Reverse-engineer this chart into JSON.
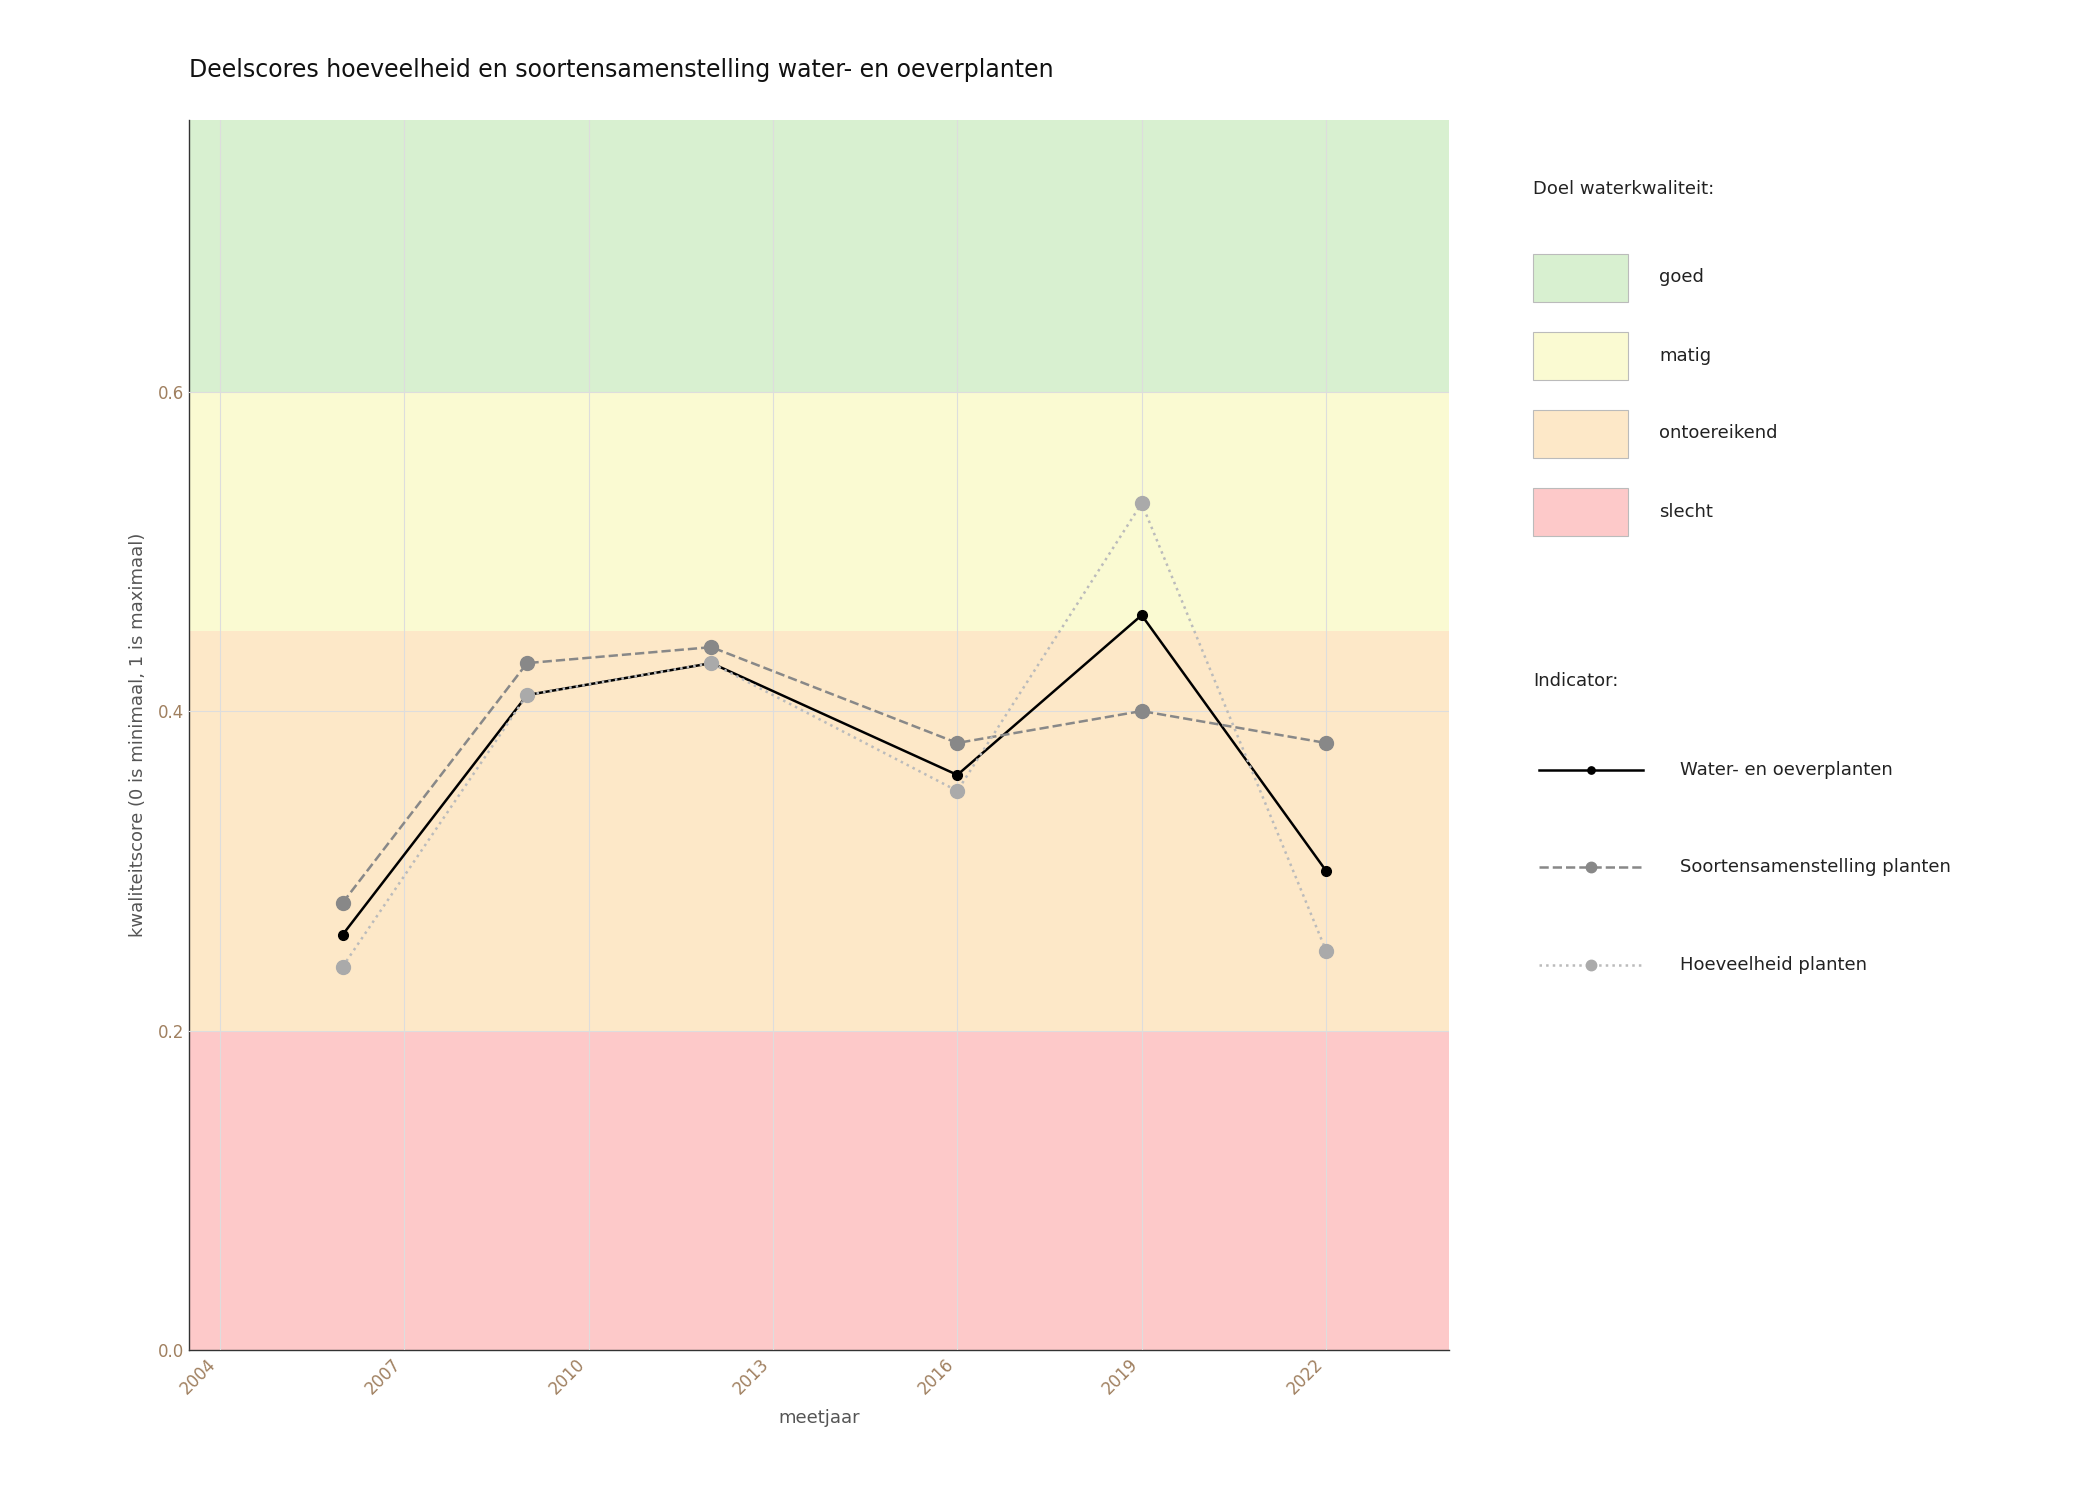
{
  "title": "Deelscores hoeveelheid en soortensamenstelling water- en oeverplanten",
  "xlabel": "meetjaar",
  "ylabel": "kwaliteitscore (0 is minimaal, 1 is maximaal)",
  "xlim": [
    2003.5,
    2024.0
  ],
  "ylim": [
    0.0,
    0.77
  ],
  "yticks": [
    0.0,
    0.2,
    0.4,
    0.6
  ],
  "xticks": [
    2004,
    2007,
    2010,
    2013,
    2016,
    2019,
    2022
  ],
  "bg_bands": [
    {
      "ymin": 0.0,
      "ymax": 0.2,
      "color": "#fdc9c9",
      "label": "slecht"
    },
    {
      "ymin": 0.2,
      "ymax": 0.45,
      "color": "#fde8c8",
      "label": "ontoereikend"
    },
    {
      "ymin": 0.45,
      "ymax": 0.6,
      "color": "#fafad2",
      "label": "matig"
    },
    {
      "ymin": 0.6,
      "ymax": 0.77,
      "color": "#d8f0d0",
      "label": "goed"
    }
  ],
  "series": [
    {
      "name": "Water- en oeverplanten",
      "x": [
        2006,
        2009,
        2012,
        2016,
        2019,
        2022
      ],
      "y": [
        0.26,
        0.41,
        0.43,
        0.36,
        0.46,
        0.3
      ],
      "color": "#000000",
      "linestyle": "solid",
      "linewidth": 1.8,
      "marker": "o",
      "markersize": 7,
      "markerfacecolor": "#000000",
      "markeredgecolor": "#000000"
    },
    {
      "name": "Soortensamenstelling planten",
      "x": [
        2006,
        2009,
        2012,
        2016,
        2019,
        2022
      ],
      "y": [
        0.28,
        0.43,
        0.44,
        0.38,
        0.4,
        0.38
      ],
      "color": "#888888",
      "linestyle": "dashed",
      "linewidth": 1.8,
      "marker": "o",
      "markersize": 10,
      "markerfacecolor": "#888888",
      "markeredgecolor": "#888888"
    },
    {
      "name": "Hoeveelheid planten",
      "x": [
        2006,
        2009,
        2012,
        2016,
        2019,
        2022
      ],
      "y": [
        0.24,
        0.41,
        0.43,
        0.35,
        0.53,
        0.25
      ],
      "color": "#bbbbbb",
      "linestyle": "dotted",
      "linewidth": 1.8,
      "marker": "o",
      "markersize": 10,
      "markerfacecolor": "#aaaaaa",
      "markeredgecolor": "#aaaaaa"
    }
  ],
  "legend_title_quality": "Doel waterkwaliteit:",
  "legend_title_indicator": "Indicator:",
  "bg_color": "#ffffff",
  "grid_color": "#dddddd",
  "title_fontsize": 17,
  "label_fontsize": 13,
  "tick_fontsize": 12,
  "legend_fontsize": 13,
  "tick_color": "#a08060"
}
